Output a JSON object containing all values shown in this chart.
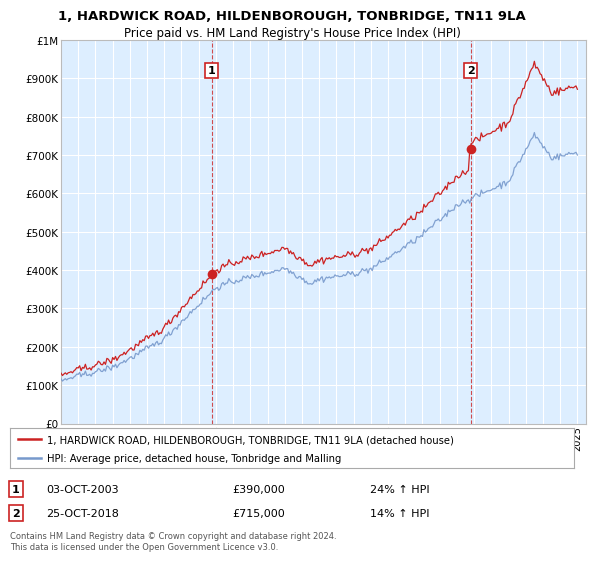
{
  "title_line1": "1, HARDWICK ROAD, HILDENBOROUGH, TONBRIDGE, TN11 9LA",
  "title_line2": "Price paid vs. HM Land Registry's House Price Index (HPI)",
  "background_color": "#ffffff",
  "plot_bg_color": "#ddeeff",
  "grid_color": "#ffffff",
  "hpi_color": "#7799cc",
  "price_color": "#cc2222",
  "sale1_price": 390000,
  "sale1_year": 2003.75,
  "sale2_price": 715000,
  "sale2_year": 2018.79,
  "sale1_date": "03-OCT-2003",
  "sale1_hpi_pct": "24%",
  "sale2_date": "25-OCT-2018",
  "sale2_hpi_pct": "14%",
  "legend_label1": "1, HARDWICK ROAD, HILDENBOROUGH, TONBRIDGE, TN11 9LA (detached house)",
  "legend_label2": "HPI: Average price, detached house, Tonbridge and Malling",
  "footer": "Contains HM Land Registry data © Crown copyright and database right 2024.\nThis data is licensed under the Open Government Licence v3.0.",
  "ylim_min": 0,
  "ylim_max": 1000000,
  "xlim_min": 1995,
  "xlim_max": 2025.5
}
